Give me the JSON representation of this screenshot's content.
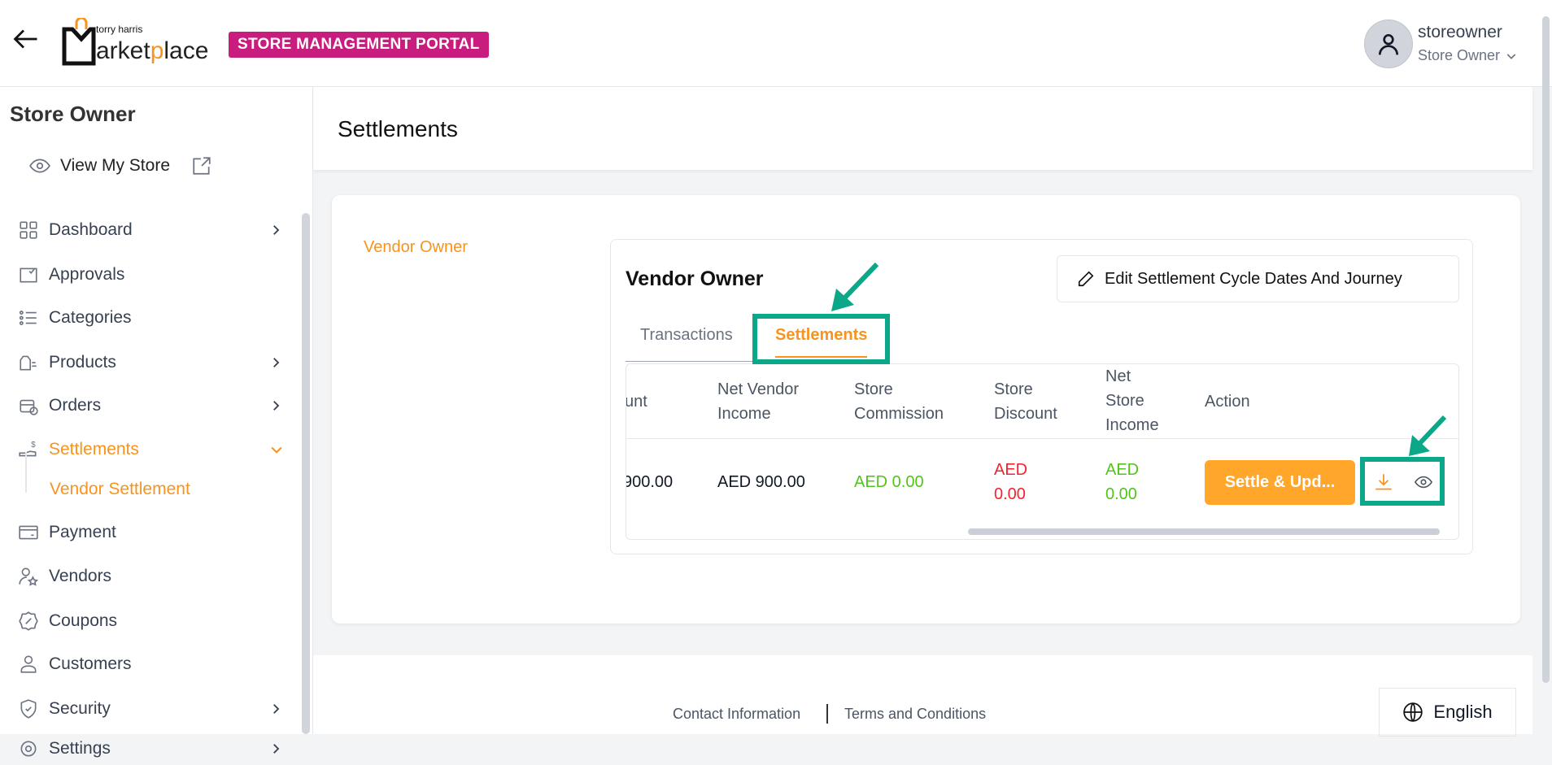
{
  "header": {
    "portal_badge": "STORE MANAGEMENT PORTAL",
    "logo_text": "torry harris Marketplace",
    "user": {
      "name": "storeowner",
      "role": "Store Owner"
    }
  },
  "sidebar": {
    "title": "Store Owner",
    "view_store": "View My Store",
    "items": [
      {
        "label": "Dashboard",
        "icon": "dashboard-icon",
        "chevron": ">"
      },
      {
        "label": "Approvals",
        "icon": "approvals-icon"
      },
      {
        "label": "Categories",
        "icon": "list-icon"
      },
      {
        "label": "Products",
        "icon": "bag-icon",
        "chevron": ">"
      },
      {
        "label": "Orders",
        "icon": "orders-icon",
        "chevron": ">"
      },
      {
        "label": "Settlements",
        "icon": "settlements-icon",
        "expanded": true
      },
      {
        "label": "Vendor Settlement",
        "sub": true
      },
      {
        "label": "Payment",
        "icon": "card-icon"
      },
      {
        "label": "Vendors",
        "icon": "vendors-icon"
      },
      {
        "label": "Coupons",
        "icon": "coupon-icon"
      },
      {
        "label": "Customers",
        "icon": "user-icon"
      },
      {
        "label": "Security",
        "icon": "shield-icon",
        "chevron": ">"
      },
      {
        "label": "Settings",
        "icon": "gear-icon",
        "chevron": ">"
      }
    ]
  },
  "page": {
    "title": "Settlements",
    "vendor_link": "Vendor Owner",
    "panel_title": "Vendor Owner",
    "edit_button": "Edit Settlement Cycle Dates And Journey",
    "tabs": [
      {
        "label": "Transactions",
        "active": false
      },
      {
        "label": "Settlements",
        "active": true
      }
    ],
    "table": {
      "headers": [
        "unt",
        "Net Vendor Income",
        "Store Commission",
        "Store Discount",
        "Net Store Income",
        "Action"
      ],
      "rows": [
        {
          "amount": "900.00",
          "net_vendor_income": "AED 900.00",
          "store_commission": "AED 0.00",
          "store_discount": "AED 0.00",
          "net_store_income": "AED 0.00",
          "action": "Settle & Upd..."
        }
      ]
    }
  },
  "footer": {
    "contact": "Contact Information",
    "terms": "Terms and Conditions",
    "language": "English"
  },
  "colors": {
    "accent": "#f7931e",
    "badge": "#c81d7e",
    "annotation": "#0aa889",
    "positive": "#52c41a",
    "negative": "#f5222d"
  }
}
